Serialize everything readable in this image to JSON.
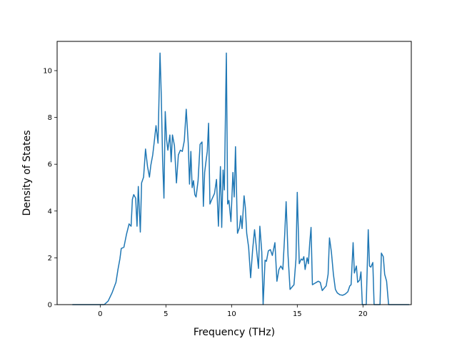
{
  "chart_data": {
    "type": "line",
    "title": "",
    "xlabel": "Frequency (THz)",
    "ylabel": "Density of States",
    "xlim": [
      -3.28,
      23.68
    ],
    "ylim": [
      0,
      11.25
    ],
    "xticks": [
      0,
      5,
      10,
      15,
      20
    ],
    "yticks": [
      0,
      2,
      4,
      6,
      8,
      10
    ],
    "grid": false,
    "legend": "none",
    "series": [
      {
        "color": "#1f77b4",
        "points": [
          [
            -2.1,
            0.0
          ],
          [
            0.3,
            0.0
          ],
          [
            0.6,
            0.15
          ],
          [
            0.9,
            0.5
          ],
          [
            1.2,
            0.95
          ],
          [
            1.35,
            1.5
          ],
          [
            1.5,
            1.95
          ],
          [
            1.6,
            2.4
          ],
          [
            1.8,
            2.45
          ],
          [
            2.0,
            3.0
          ],
          [
            2.2,
            3.45
          ],
          [
            2.35,
            3.35
          ],
          [
            2.45,
            4.5
          ],
          [
            2.55,
            4.7
          ],
          [
            2.7,
            4.55
          ],
          [
            2.8,
            3.35
          ],
          [
            2.9,
            5.05
          ],
          [
            3.05,
            3.1
          ],
          [
            3.15,
            5.2
          ],
          [
            3.3,
            5.45
          ],
          [
            3.45,
            6.65
          ],
          [
            3.6,
            5.9
          ],
          [
            3.75,
            5.45
          ],
          [
            3.85,
            5.95
          ],
          [
            4.0,
            6.4
          ],
          [
            4.1,
            6.9
          ],
          [
            4.25,
            7.65
          ],
          [
            4.4,
            6.9
          ],
          [
            4.55,
            10.75
          ],
          [
            4.65,
            8.9
          ],
          [
            4.75,
            6.2
          ],
          [
            4.85,
            4.55
          ],
          [
            4.95,
            8.25
          ],
          [
            5.05,
            7.05
          ],
          [
            5.15,
            6.6
          ],
          [
            5.3,
            7.25
          ],
          [
            5.4,
            6.1
          ],
          [
            5.5,
            7.25
          ],
          [
            5.65,
            6.8
          ],
          [
            5.8,
            5.2
          ],
          [
            5.95,
            6.4
          ],
          [
            6.1,
            6.6
          ],
          [
            6.25,
            6.55
          ],
          [
            6.4,
            7.0
          ],
          [
            6.55,
            8.35
          ],
          [
            6.7,
            6.9
          ],
          [
            6.8,
            5.15
          ],
          [
            6.9,
            6.55
          ],
          [
            7.0,
            5.0
          ],
          [
            7.1,
            5.3
          ],
          [
            7.2,
            4.7
          ],
          [
            7.3,
            4.6
          ],
          [
            7.45,
            5.3
          ],
          [
            7.6,
            6.85
          ],
          [
            7.75,
            6.95
          ],
          [
            7.85,
            4.2
          ],
          [
            7.95,
            5.65
          ],
          [
            8.05,
            6.1
          ],
          [
            8.15,
            6.55
          ],
          [
            8.25,
            7.75
          ],
          [
            8.35,
            4.3
          ],
          [
            8.5,
            4.5
          ],
          [
            8.7,
            4.75
          ],
          [
            8.85,
            5.35
          ],
          [
            9.0,
            3.35
          ],
          [
            9.15,
            5.9
          ],
          [
            9.25,
            3.3
          ],
          [
            9.35,
            5.75
          ],
          [
            9.45,
            4.9
          ],
          [
            9.6,
            10.75
          ],
          [
            9.7,
            4.3
          ],
          [
            9.8,
            4.45
          ],
          [
            9.95,
            3.55
          ],
          [
            10.1,
            5.65
          ],
          [
            10.2,
            4.6
          ],
          [
            10.3,
            6.75
          ],
          [
            10.45,
            3.05
          ],
          [
            10.6,
            3.3
          ],
          [
            10.7,
            3.8
          ],
          [
            10.8,
            3.25
          ],
          [
            10.95,
            4.65
          ],
          [
            11.05,
            4.15
          ],
          [
            11.15,
            3.05
          ],
          [
            11.3,
            2.45
          ],
          [
            11.45,
            1.15
          ],
          [
            11.6,
            2.35
          ],
          [
            11.75,
            3.2
          ],
          [
            11.9,
            2.35
          ],
          [
            12.05,
            1.55
          ],
          [
            12.15,
            3.35
          ],
          [
            12.3,
            2.25
          ],
          [
            12.4,
            0.0
          ],
          [
            12.55,
            1.9
          ],
          [
            12.65,
            1.85
          ],
          [
            12.8,
            2.3
          ],
          [
            12.95,
            2.35
          ],
          [
            13.1,
            2.1
          ],
          [
            13.3,
            2.65
          ],
          [
            13.45,
            1.0
          ],
          [
            13.6,
            1.5
          ],
          [
            13.75,
            1.65
          ],
          [
            13.9,
            1.5
          ],
          [
            14.05,
            3.05
          ],
          [
            14.15,
            4.4
          ],
          [
            14.3,
            2.1
          ],
          [
            14.45,
            0.65
          ],
          [
            14.6,
            0.75
          ],
          [
            14.75,
            0.85
          ],
          [
            14.9,
            1.95
          ],
          [
            15.0,
            4.8
          ],
          [
            15.15,
            1.75
          ],
          [
            15.3,
            1.95
          ],
          [
            15.4,
            1.9
          ],
          [
            15.5,
            2.05
          ],
          [
            15.6,
            1.5
          ],
          [
            15.75,
            2.0
          ],
          [
            15.85,
            1.75
          ],
          [
            15.95,
            2.65
          ],
          [
            16.05,
            3.3
          ],
          [
            16.15,
            0.85
          ],
          [
            16.3,
            0.9
          ],
          [
            16.45,
            0.95
          ],
          [
            16.6,
            1.0
          ],
          [
            16.75,
            0.95
          ],
          [
            16.9,
            0.6
          ],
          [
            17.05,
            0.7
          ],
          [
            17.2,
            0.8
          ],
          [
            17.35,
            1.3
          ],
          [
            17.45,
            2.85
          ],
          [
            17.6,
            2.25
          ],
          [
            17.75,
            1.3
          ],
          [
            17.9,
            0.65
          ],
          [
            18.05,
            0.5
          ],
          [
            18.25,
            0.42
          ],
          [
            18.45,
            0.4
          ],
          [
            18.65,
            0.45
          ],
          [
            18.85,
            0.55
          ],
          [
            19.0,
            0.8
          ],
          [
            19.1,
            0.85
          ],
          [
            19.25,
            2.65
          ],
          [
            19.35,
            1.35
          ],
          [
            19.5,
            1.65
          ],
          [
            19.6,
            0.95
          ],
          [
            19.75,
            1.05
          ],
          [
            19.85,
            1.4
          ],
          [
            19.95,
            0.0
          ],
          [
            20.1,
            0.0
          ],
          [
            20.25,
            0.0
          ],
          [
            20.4,
            3.2
          ],
          [
            20.5,
            1.65
          ],
          [
            20.6,
            1.6
          ],
          [
            20.75,
            1.8
          ],
          [
            20.85,
            0.0
          ],
          [
            21.05,
            0.0
          ],
          [
            21.3,
            0.0
          ],
          [
            21.4,
            2.2
          ],
          [
            21.55,
            2.05
          ],
          [
            21.65,
            1.3
          ],
          [
            21.8,
            1.0
          ],
          [
            21.95,
            0.0
          ],
          [
            22.5,
            0.0
          ],
          [
            23.5,
            0.0
          ]
        ]
      }
    ]
  }
}
